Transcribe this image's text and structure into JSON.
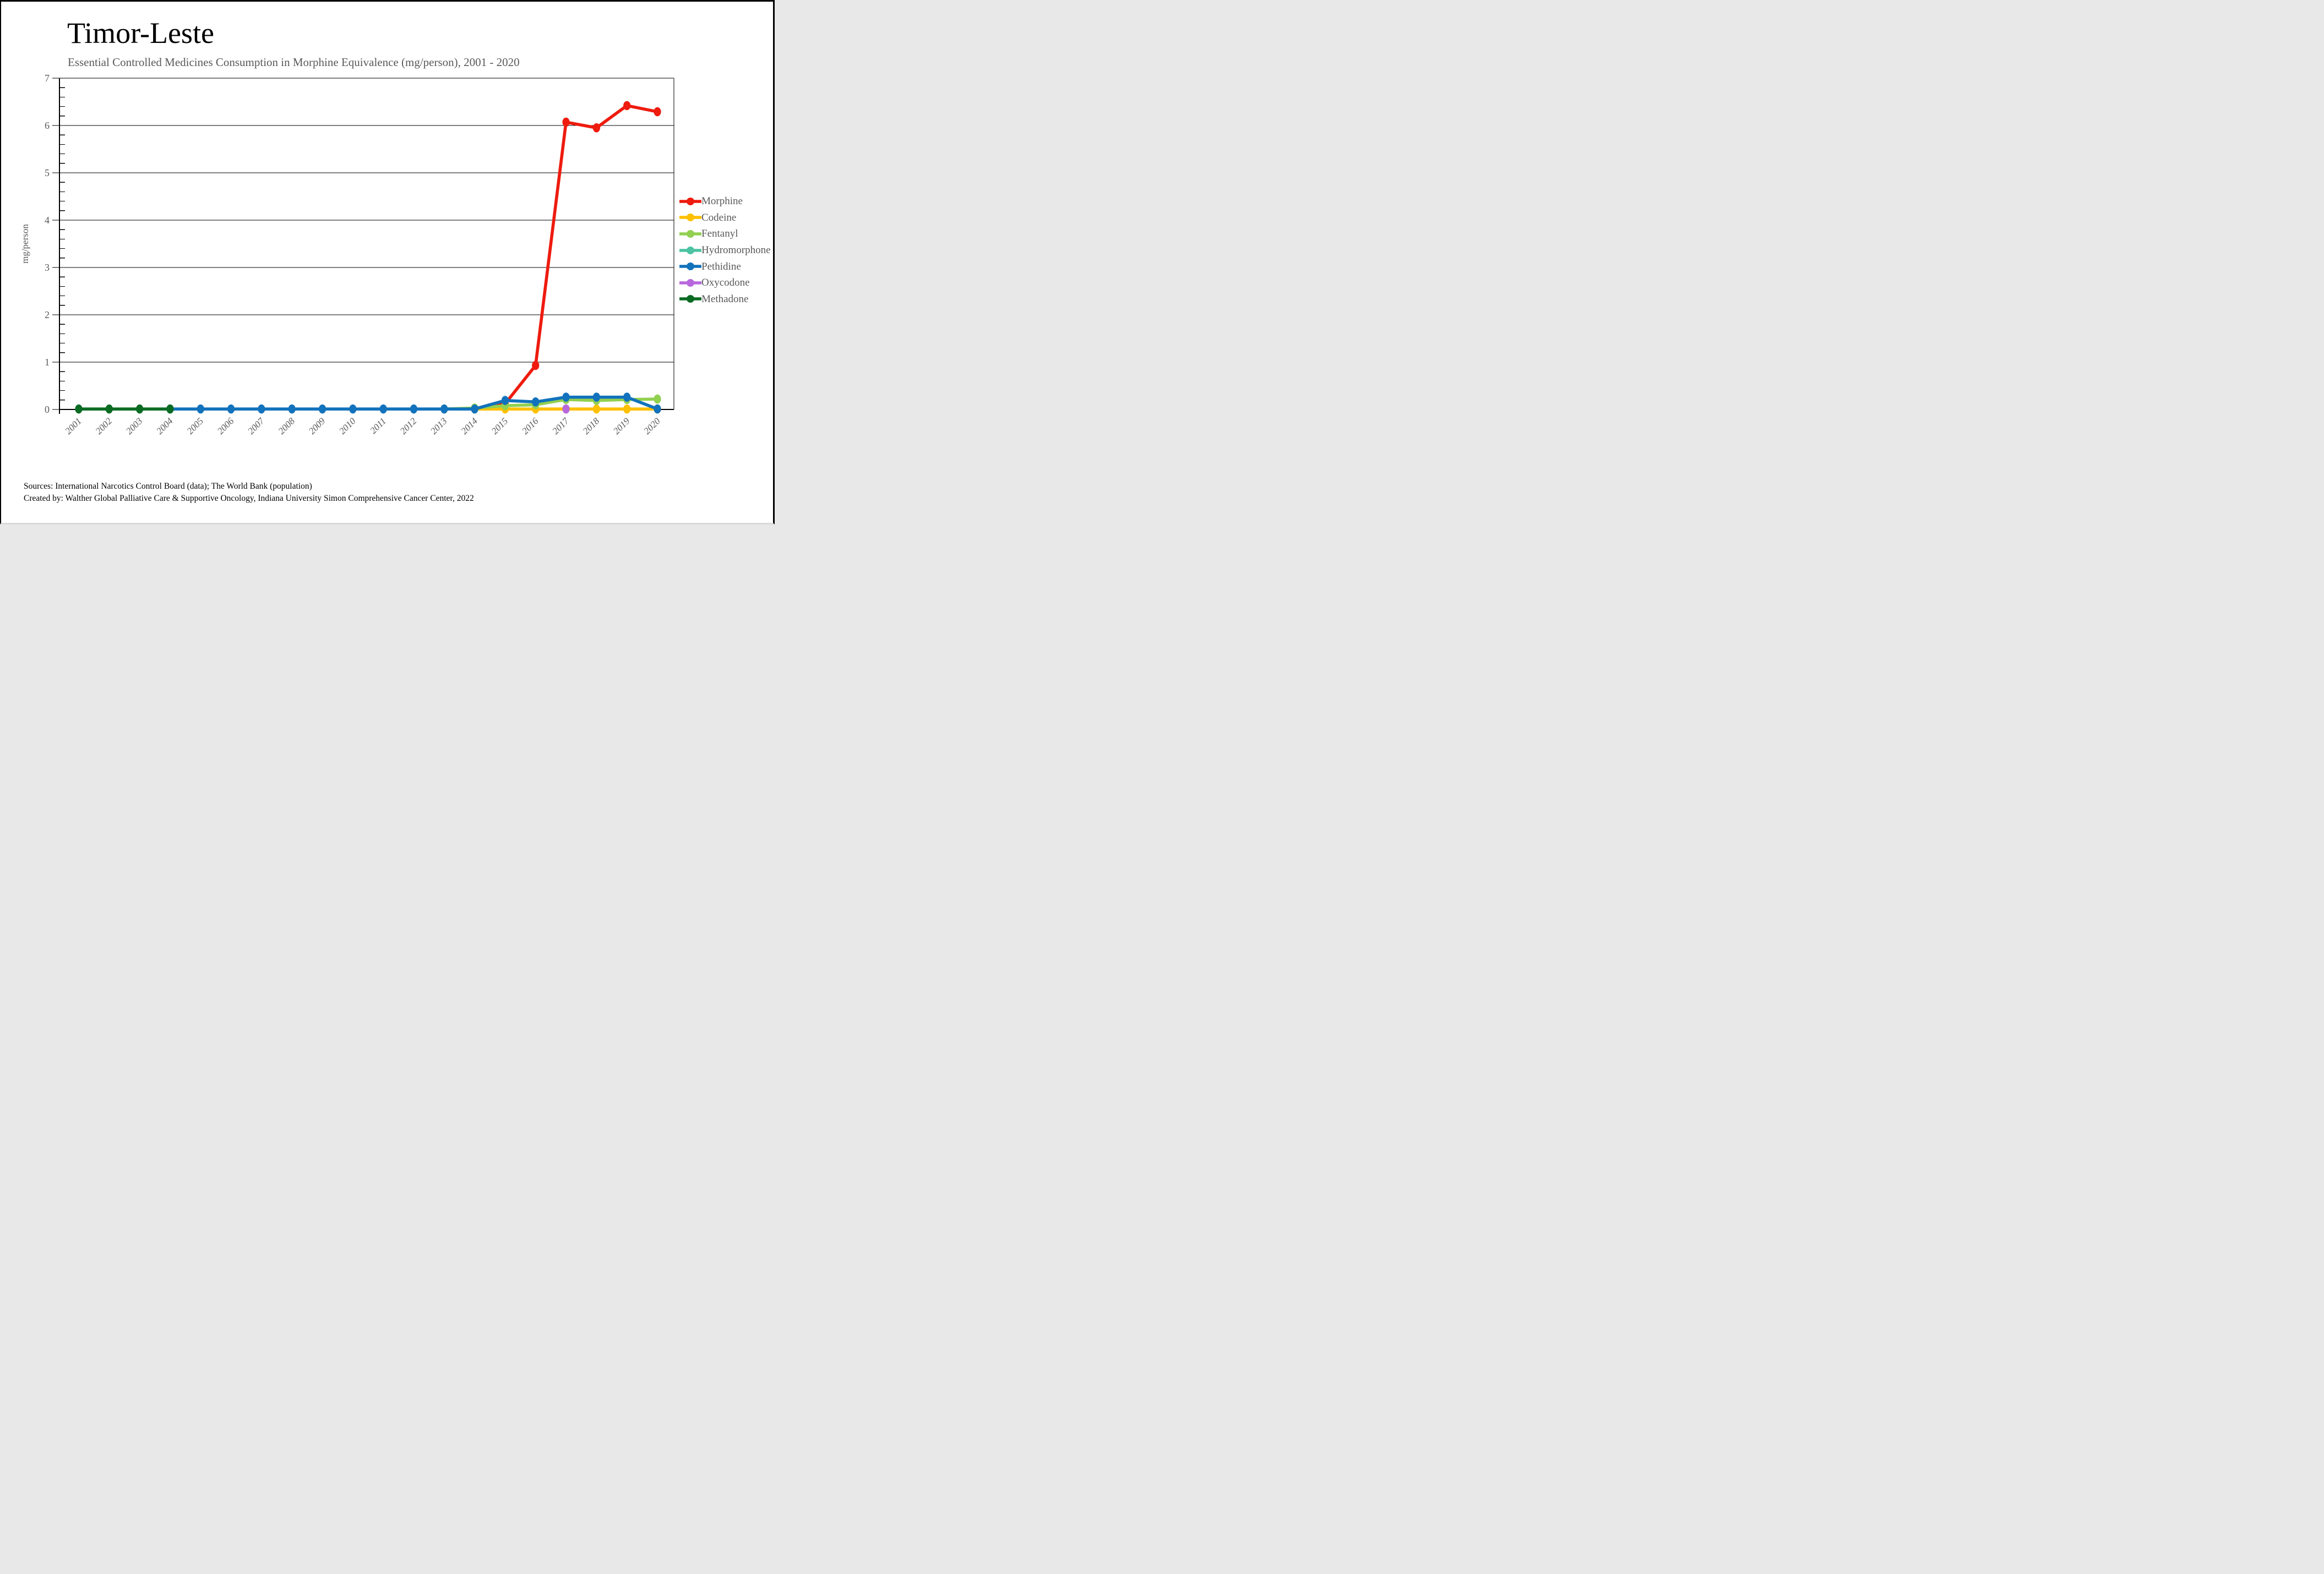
{
  "header": {
    "title": "Timor-Leste",
    "subtitle": "Essential Controlled Medicines Consumption in Morphine Equivalence (mg/person), 2001 - 2020"
  },
  "footer": {
    "line1": "Sources: International Narcotics Control Board (data); The World Bank (population)",
    "line2": "Created by: Walther Global Palliative Care & Supportive Oncology, Indiana University Simon Comprehensive Cancer Center, 2022"
  },
  "colors": {
    "text_gray": "#595959",
    "axis_black": "#000000"
  },
  "chart_data": {
    "type": "line",
    "title": "Timor-Leste",
    "subtitle": "Essential Controlled Medicines Consumption in Morphine Equivalence (mg/person), 2001 - 2020",
    "xlabel": "",
    "ylabel": "mg/person",
    "ylim": [
      0,
      7
    ],
    "yticks": [
      0,
      1,
      2,
      3,
      4,
      5,
      6,
      7
    ],
    "minor_tick_step": 0.2,
    "grid": "horizontal",
    "legend_position": "right",
    "x_years": [
      2001,
      2002,
      2003,
      2004,
      2005,
      2006,
      2007,
      2008,
      2009,
      2010,
      2011,
      2012,
      2013,
      2014,
      2015,
      2016,
      2017,
      2018,
      2019,
      2020
    ],
    "series": [
      {
        "name": "Morphine",
        "color": "#ee1b0e",
        "start_year": 2014,
        "values": [
          0.02,
          0.12,
          0.93,
          6.07,
          5.95,
          6.42,
          6.29
        ]
      },
      {
        "name": "Codeine",
        "color": "#ffc000",
        "start_year": 2014,
        "values": [
          0.01,
          0.01,
          0.01,
          0.01,
          0.01,
          0.01,
          0.01
        ]
      },
      {
        "name": "Fentanyl",
        "color": "#92d050",
        "start_year": 2013,
        "values": [
          0.01,
          0.03,
          0.08,
          0.1,
          0.21,
          0.19,
          0.21,
          0.22
        ]
      },
      {
        "name": "Hydromorphone",
        "color": "#4cc3a3",
        "start_year": null,
        "values": []
      },
      {
        "name": "Pethidine",
        "color": "#1272bc",
        "start_year": 2004,
        "values": [
          0.01,
          0.01,
          0.01,
          0.01,
          0.01,
          0.01,
          0.01,
          0.01,
          0.01,
          0.01,
          0.01,
          0.19,
          0.16,
          0.26,
          0.26,
          0.26,
          0.01
        ]
      },
      {
        "name": "Oxycodone",
        "color": "#b768dc",
        "start_year": 2017,
        "values": [
          0.01
        ]
      },
      {
        "name": "Methadone",
        "color": "#0a6b23",
        "start_year": 2001,
        "values": [
          0.01,
          0.01,
          0.01,
          0.01
        ]
      }
    ]
  }
}
